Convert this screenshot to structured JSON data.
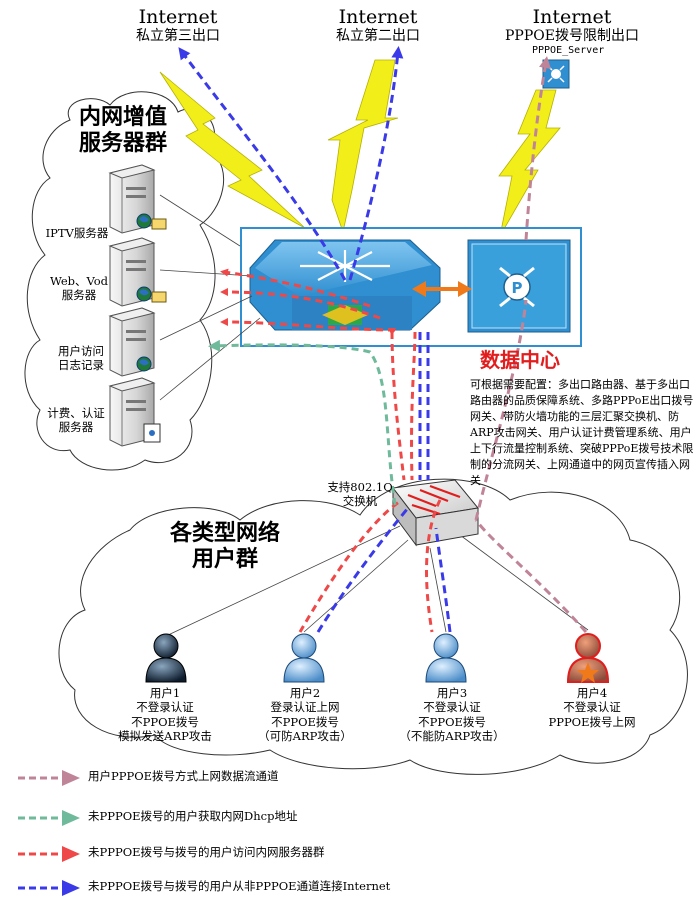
{
  "exits": [
    {
      "title": "Internet",
      "subtitle": "私立第三出口"
    },
    {
      "title": "Internet",
      "subtitle": "私立第二出口"
    },
    {
      "title": "Internet",
      "subtitle": "PPPOE拨号限制出口"
    }
  ],
  "pppoe_server_label": "PPPOE_Server",
  "server_group": {
    "title_line1": "内网增值",
    "title_line2": "服务器群",
    "servers": [
      {
        "label_lines": [
          "IPTV服务器"
        ]
      },
      {
        "label_lines": [
          "Web、Vod",
          "服务器"
        ]
      },
      {
        "label_lines": [
          "用户访问",
          "日志记录"
        ]
      },
      {
        "label_lines": [
          "计费、认证",
          "服务器"
        ]
      }
    ]
  },
  "data_center": {
    "title": "数据中心",
    "description": "可根据需要配置：多出口路由器、基于多出口路由器的品质保障系统、多路PPPoE出口拨号网关、带防火墙功能的三层汇聚交换机、防ARP攻击网关、用户认证计费管理系统、用户上下行流量控制系统、突破PPPoE拨号技术限制的分流网关、上网通道中的网页宣传插入网关"
  },
  "switch_label_lines": [
    "支持802.1Q",
    "交换机"
  ],
  "user_group": {
    "title_line1": "各类型网络",
    "title_line2": "用户群"
  },
  "users": [
    {
      "lines": [
        "用户1",
        "不登录认证",
        "不PPOE拨号",
        "模拟发送ARP攻击"
      ]
    },
    {
      "lines": [
        "用户2",
        "登录认证上网",
        "不PPOE拨号",
        "（可防ARP攻击）"
      ]
    },
    {
      "lines": [
        "用户3",
        "不登录认证",
        "不PPOE拨号",
        "（不能防ARP攻击）"
      ]
    },
    {
      "lines": [
        "用户4",
        "不登录认证",
        "PPPOE拨号上网"
      ]
    }
  ],
  "legend": [
    {
      "color": "#c08498",
      "label": "用户PPPOE拨号方式上网数据流通道"
    },
    {
      "color": "#6fba9a",
      "label": "未PPPOE拨号的用户获取内网Dhcp地址"
    },
    {
      "color": "#ef4848",
      "label": "未PPPOE拨号与拨号的用户访问内网服务器群"
    },
    {
      "color": "#3a3ae8",
      "label": "未PPPOE拨号与拨号的用户从非PPPOE通道连接Internet"
    }
  ],
  "colors": {
    "pppoe_flow": "#c08498",
    "dhcp_flow": "#6fba9a",
    "server_flow": "#ef4848",
    "internet_flow": "#3a3ae8",
    "lightning": "#f2ee1a",
    "device_blue": "#2f8fd0",
    "title_red": "#e11d1d"
  }
}
